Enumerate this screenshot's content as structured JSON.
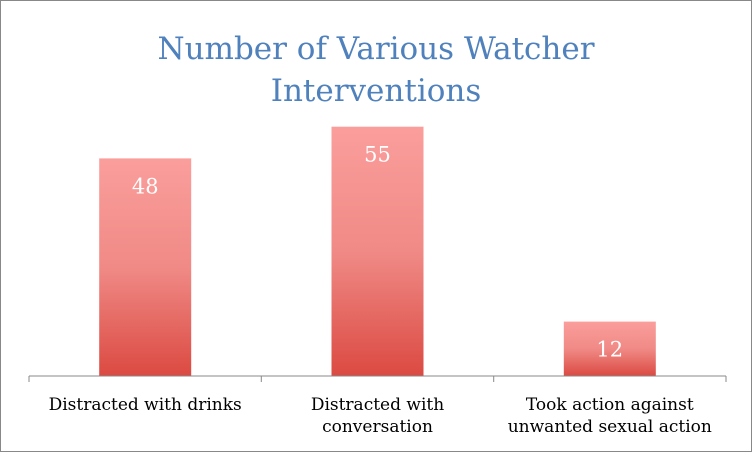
{
  "chart_data": {
    "type": "bar",
    "title_lines": [
      "Number of Various Watcher",
      "Interventions"
    ],
    "categories": [
      [
        "Distracted with drinks"
      ],
      [
        "Distracted with",
        "conversation"
      ],
      [
        "Took action against",
        "unwanted sexual action"
      ]
    ],
    "values": [
      48,
      55,
      12
    ],
    "ylim": [
      0,
      60
    ],
    "grid": false,
    "legend": "none",
    "colors": {
      "bar_top": "#fa9e9c",
      "bar_bottom": "#db4a42",
      "title": "#4f81bd",
      "axis": "#888888",
      "data_label": "#ffffff"
    }
  }
}
